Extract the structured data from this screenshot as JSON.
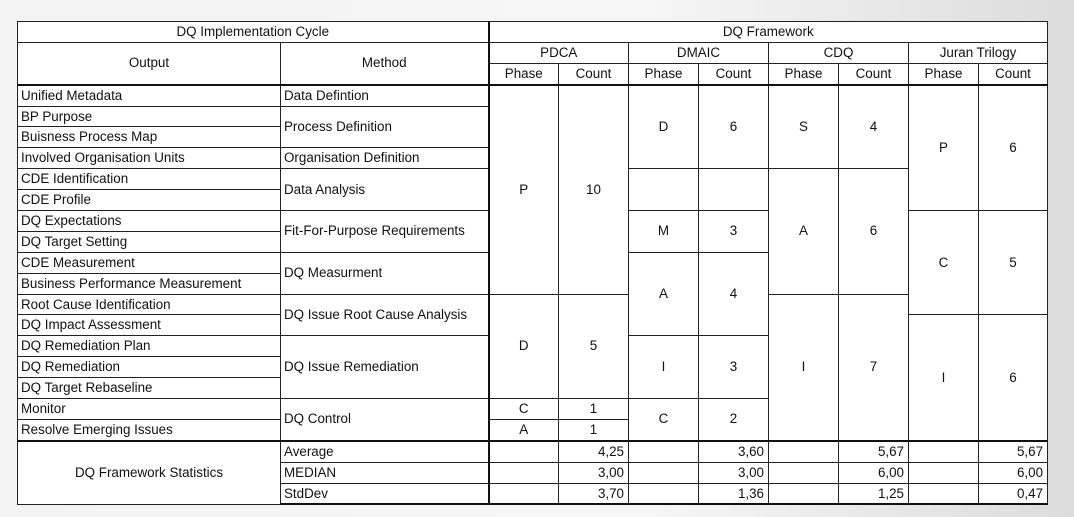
{
  "header": {
    "cycle": "DQ Implementation Cycle",
    "framework": "DQ Framework",
    "output": "Output",
    "method": "Method",
    "pdca": "PDCA",
    "dmaic": "DMAIC",
    "cdq": "CDQ",
    "juran": "Juran Trilogy",
    "phase": "Phase",
    "count": "Count"
  },
  "outputs": [
    "Unified Metadata",
    "BP Purpose",
    "Buisness Process Map",
    "Involved Organisation Units",
    "CDE Identification",
    "CDE Profile",
    "DQ Expectations",
    "DQ Target Setting",
    "CDE Measurement",
    "Business Performance Measurement",
    "Root Cause Identification",
    "DQ Impact Assessment",
    "DQ Remediation Plan",
    "DQ Remediation",
    "DQ Target Rebaseline",
    "Monitor",
    "Resolve Emerging Issues"
  ],
  "methods": [
    "Data Defintion",
    "Process Definition",
    "Organisation Definition",
    "Data Analysis",
    "Fit-For-Purpose Requirements",
    "DQ Measurment",
    "DQ Issue Root Cause Analysis",
    "DQ Issue Remediation",
    "DQ Control"
  ],
  "pdca": [
    {
      "phase": "P",
      "count": "10"
    },
    {
      "phase": "D",
      "count": "5"
    },
    {
      "phase": "C",
      "count": "1"
    },
    {
      "phase": "A",
      "count": "1"
    }
  ],
  "dmaic": [
    {
      "phase": "D",
      "count": "6"
    },
    {
      "phase": "M",
      "count": "3"
    },
    {
      "phase": "A",
      "count": "4"
    },
    {
      "phase": "I",
      "count": "3"
    },
    {
      "phase": "C",
      "count": "2"
    }
  ],
  "cdq": [
    {
      "phase": "S",
      "count": "4"
    },
    {
      "phase": "A",
      "count": "6"
    },
    {
      "phase": "I",
      "count": "7"
    }
  ],
  "juran": [
    {
      "phase": "P",
      "count": "6"
    },
    {
      "phase": "C",
      "count": "5"
    },
    {
      "phase": "I",
      "count": "6"
    }
  ],
  "stats": {
    "label": "DQ Framework Statistics",
    "rows": [
      {
        "name": "Average",
        "pdca": "4,25",
        "dmaic": "3,60",
        "cdq": "5,67",
        "juran": "5,67"
      },
      {
        "name": "MEDIAN",
        "pdca": "3,00",
        "dmaic": "3,00",
        "cdq": "6,00",
        "juran": "6,00"
      },
      {
        "name": "StdDev",
        "pdca": "3,70",
        "dmaic": "1,36",
        "cdq": "1,25",
        "juran": "0,47"
      }
    ]
  }
}
